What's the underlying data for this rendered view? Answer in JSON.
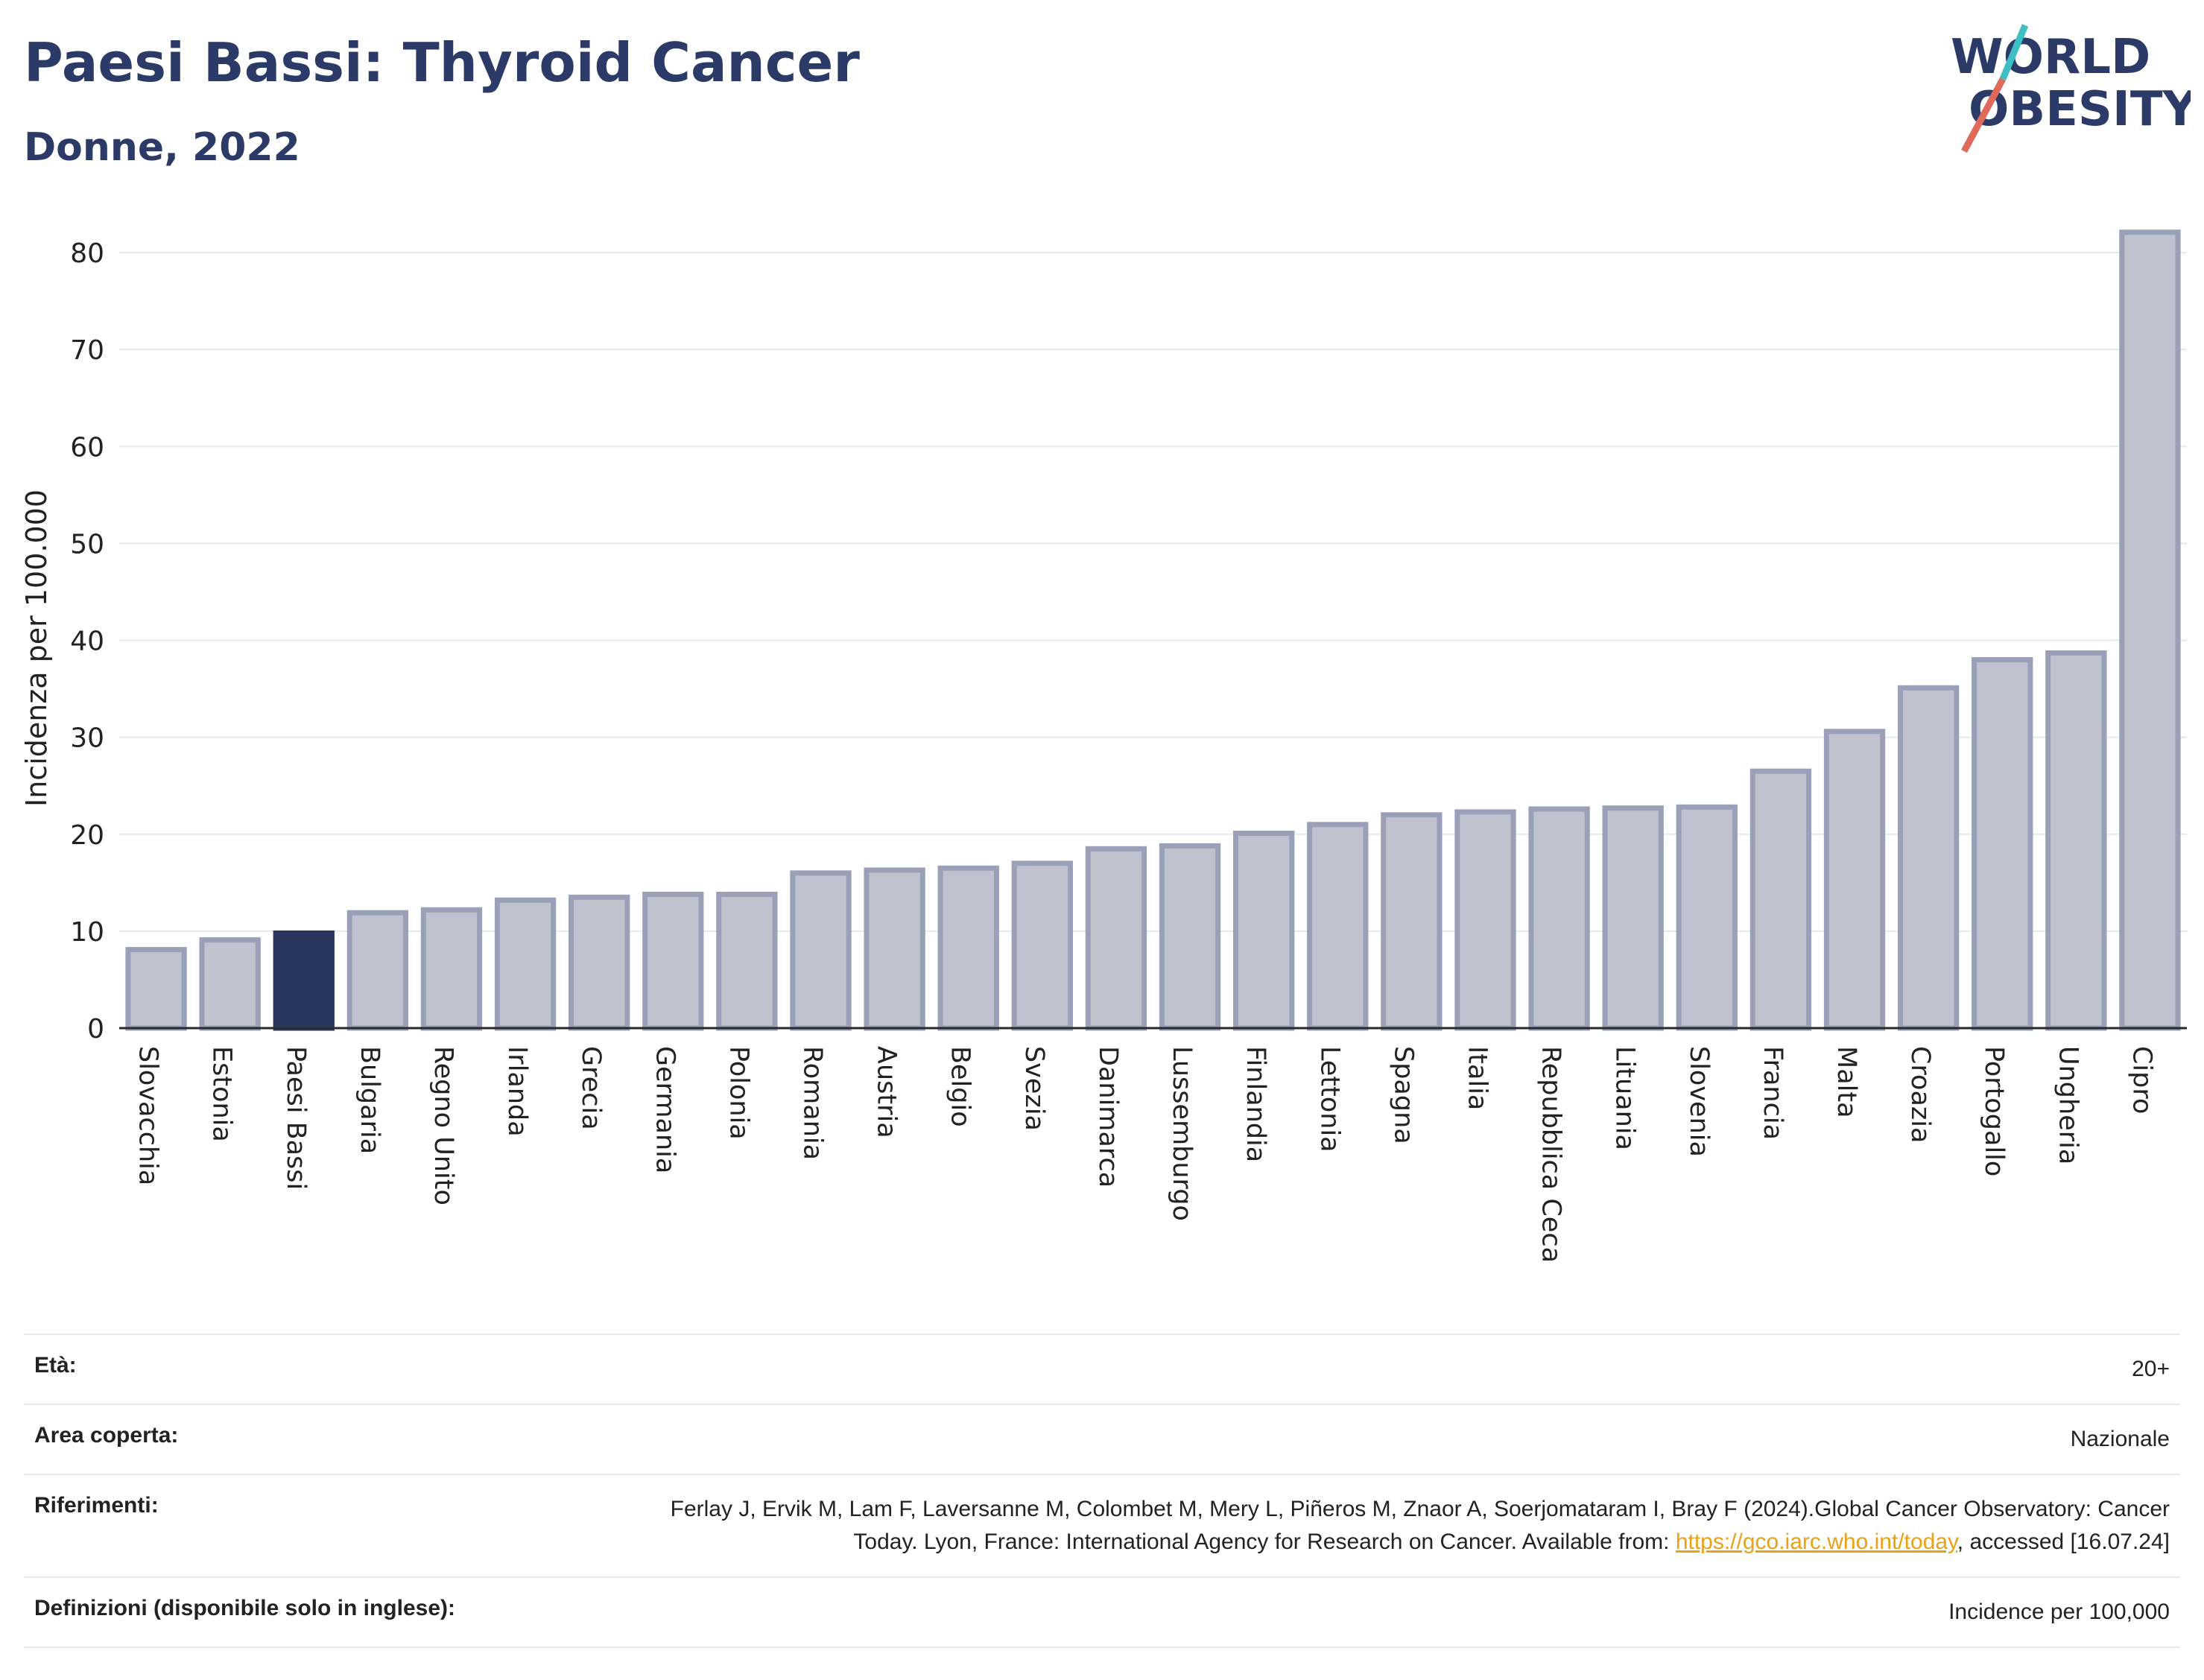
{
  "header": {
    "title": "Paesi Bassi: Thyroid Cancer",
    "subtitle": "Donne, 2022"
  },
  "logo": {
    "line1": "WORLD",
    "line2": "OBESITY"
  },
  "colors": {
    "bar": "#bfc3d0",
    "bar_border": "#9aa0b8",
    "highlight": "#2b3660",
    "text": "#2b3a67",
    "grid": "#e5e9ef",
    "link": "#e8a21a"
  },
  "chart_data": {
    "type": "bar",
    "ylabel": "Incidenza per 100.000",
    "ylim": [
      0,
      83
    ],
    "yticks": [
      0,
      10,
      20,
      30,
      40,
      50,
      60,
      70,
      80
    ],
    "highlight": "Paesi Bassi",
    "categories": [
      "Slovacchia",
      "Estonia",
      "Paesi Bassi",
      "Bulgaria",
      "Regno Unito",
      "Irlanda",
      "Grecia",
      "Germania",
      "Polonia",
      "Romania",
      "Austria",
      "Belgio",
      "Svezia",
      "Danimarca",
      "Lussemburgo",
      "Finlandia",
      "Lettonia",
      "Spagna",
      "Italia",
      "Repubblica Ceca",
      "Lituania",
      "Slovenia",
      "Francia",
      "Malta",
      "Croazia",
      "Portogallo",
      "Ungheria",
      "Cipro"
    ],
    "values": [
      8.1,
      9.1,
      9.8,
      11.9,
      12.2,
      13.2,
      13.5,
      13.8,
      13.8,
      16.0,
      16.3,
      16.5,
      17.0,
      18.5,
      18.8,
      20.1,
      21.0,
      22.0,
      22.3,
      22.6,
      22.7,
      22.8,
      26.5,
      30.6,
      35.1,
      38.0,
      38.7,
      82.1
    ],
    "grid": true
  },
  "meta": {
    "age_label": "Età:",
    "age_value": "20+",
    "area_label": "Area coperta:",
    "area_value": "Nazionale",
    "ref_label": "Riferimenti:",
    "ref_text_1": "Ferlay J, Ervik M, Lam F, Laversanne M, Colombet M, Mery L, Piñeros M, Znaor A, Soerjomataram I, Bray F (2024).Global Cancer Observatory: Cancer Today. Lyon, France: International Agency for Research on Cancer. Available from:",
    "ref_link": "https://gco.iarc.who.int/today",
    "ref_text_2": ", accessed [16.07.24]",
    "def_label": "Definizioni (disponibile solo in inglese):",
    "def_value": "Incidence per 100,000"
  }
}
